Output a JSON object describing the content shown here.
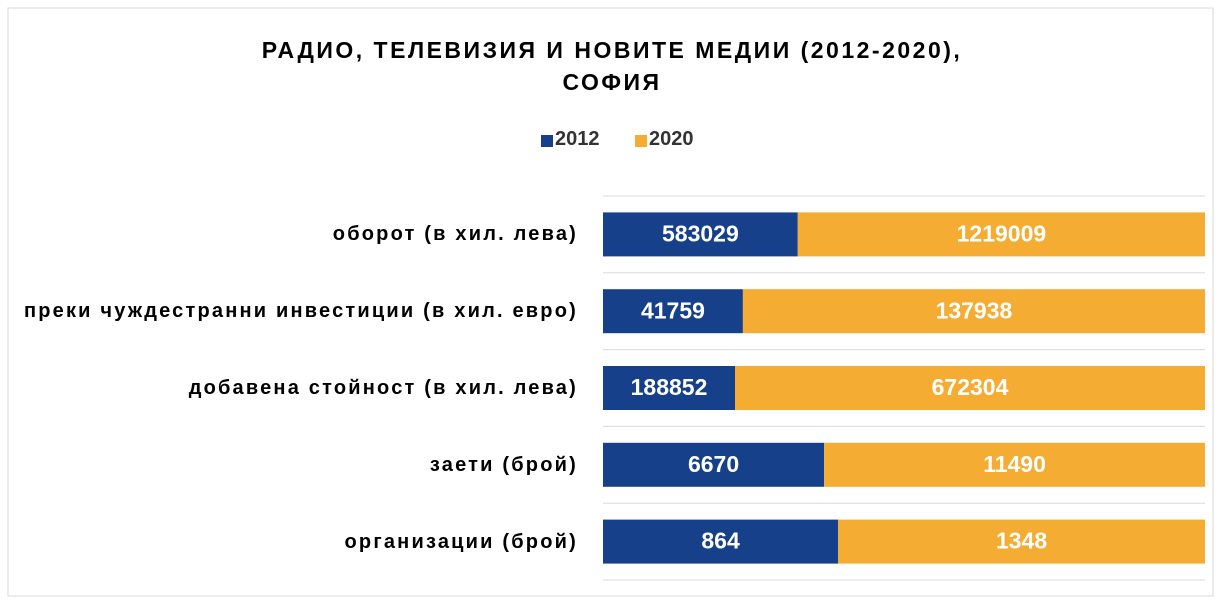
{
  "chart_data": {
    "type": "bar",
    "orientation": "horizontal",
    "stacking": "percent",
    "title": "РАДИО, ТЕЛЕВИЗИЯ И НОВИТЕ МЕДИИ (2012-2020), СОФИЯ",
    "categories": [
      "оборот (в хил. лева)",
      "преки чуждестранни инвестиции (в хил. евро)",
      "добавена стойност (в хил. лева)",
      "заети (брой)",
      "организации (брой)"
    ],
    "series": [
      {
        "name": "2012",
        "color": "#17408b",
        "values": [
          583029,
          41759,
          188852,
          6670,
          864
        ]
      },
      {
        "name": "2020",
        "color": "#f5ac33",
        "values": [
          1219009,
          137938,
          672304,
          11490,
          1348
        ]
      }
    ],
    "grid": true,
    "legend": "top"
  }
}
